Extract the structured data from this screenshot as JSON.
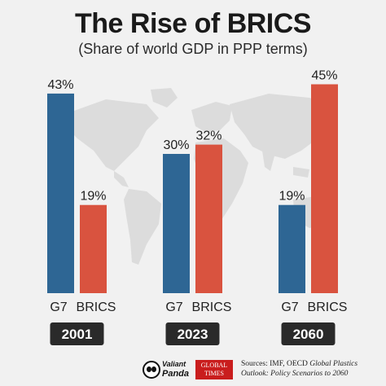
{
  "title": "The Rise of BRICS",
  "subtitle": "(Share of world GDP in PPP terms)",
  "chart_data": {
    "type": "bar",
    "title": "The Rise of BRICS",
    "subtitle": "(Share of world GDP in PPP terms)",
    "categories": [
      "2001",
      "2023",
      "2060"
    ],
    "series": [
      {
        "name": "G7",
        "values": [
          43,
          30,
          19
        ],
        "labels": [
          "43%",
          "30%",
          "19%"
        ],
        "color": "#2e6694"
      },
      {
        "name": "BRICS",
        "values": [
          19,
          32,
          45
        ],
        "labels": [
          "19%",
          "32%",
          "45%"
        ],
        "color": "#d9533f"
      }
    ],
    "ylim": [
      0,
      50
    ],
    "grid": false,
    "legend": "none"
  },
  "colors": {
    "g7": "#2e6694",
    "brics": "#d9533f",
    "year_badge_bg": "#2a2a2a",
    "year_badge_text": "#ffffff",
    "map": "#dcdcdc",
    "background": "#f1f1f1"
  },
  "footer": {
    "logo1_line1": "Valiant",
    "logo1_line2": "Panda",
    "logo2_line1": "GLOBAL",
    "logo2_line2": "TIMES",
    "sources_prefix": "Sources: IMF, OECD ",
    "sources_italic": "Global Plastics Outlook: Policy Scenarios to 2060",
    "icons": [
      "panda-logo-icon",
      "global-times-logo-icon"
    ]
  }
}
